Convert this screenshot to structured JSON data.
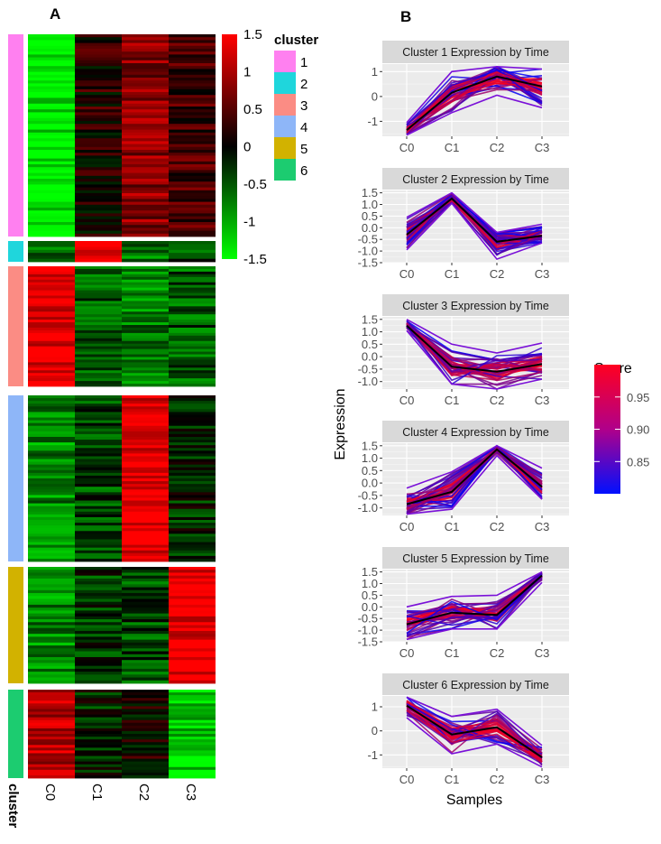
{
  "figure": {
    "panel_a_label": "A",
    "panel_b_label": "B"
  },
  "chart_data": [
    {
      "type": "heatmap",
      "title": "",
      "columns": [
        "C0",
        "C1",
        "C2",
        "C3"
      ],
      "row_annotation_label": "cluster",
      "color_scale": {
        "min": -1.5,
        "max": 1.5,
        "low_color": "#00ff00",
        "mid_color": "#000000",
        "high_color": "#ff0000",
        "ticks": [
          "1.5",
          "1",
          "0.5",
          "0",
          "-0.5",
          "-1",
          "-1.5"
        ],
        "tick_values": [
          1.5,
          1,
          0.5,
          0,
          -0.5,
          -1,
          -1.5
        ]
      },
      "legend": {
        "title": "cluster",
        "entries": [
          {
            "label": "1",
            "color": "#ff80f0"
          },
          {
            "label": "2",
            "color": "#1fd6dc"
          },
          {
            "label": "3",
            "color": "#fb8c84"
          },
          {
            "label": "4",
            "color": "#8eb6f8"
          },
          {
            "label": "5",
            "color": "#d2b200"
          },
          {
            "label": "6",
            "color": "#1ccc70"
          }
        ]
      },
      "clusters": [
        {
          "cluster": "1",
          "rows": 70,
          "mean": [
            -1.4,
            0.2,
            0.8,
            0.4
          ]
        },
        {
          "cluster": "2",
          "rows": 7,
          "mean": [
            -0.6,
            1.5,
            -0.7,
            -0.4
          ]
        },
        {
          "cluster": "3",
          "rows": 45,
          "mean": [
            1.4,
            -0.5,
            -0.7,
            -0.5
          ]
        },
        {
          "cluster": "4",
          "rows": 60,
          "mean": [
            -0.8,
            -0.4,
            1.4,
            -0.2
          ]
        },
        {
          "cluster": "5",
          "rows": 40,
          "mean": [
            -0.8,
            -0.3,
            -0.4,
            1.4
          ]
        },
        {
          "cluster": "6",
          "rows": 32,
          "mean": [
            1.1,
            -0.2,
            0.1,
            -1.2
          ]
        }
      ]
    },
    {
      "type": "line",
      "title": "Cluster Expression by Time",
      "xlabel": "Samples",
      "ylabel": "Expression",
      "x": [
        "C0",
        "C1",
        "C2",
        "C3"
      ],
      "grid": true,
      "score_legend": {
        "title": "Score",
        "ticks": [
          "0.95",
          "0.90",
          "0.85"
        ],
        "tick_values": [
          0.95,
          0.9,
          0.85
        ],
        "range": [
          0.8,
          1.0
        ],
        "low_color": "#0000ff",
        "high_color": "#ff0000"
      },
      "facets": [
        {
          "title": "Cluster 1 Expression by Time",
          "ylim": [
            -1.6,
            1.3
          ],
          "yticks": [
            "1",
            "0",
            "-1"
          ],
          "ytick_values": [
            1,
            0,
            -1
          ],
          "mean": [
            -1.35,
            0.15,
            0.8,
            0.4
          ],
          "upper": [
            -1.05,
            1.0,
            1.2,
            1.1
          ],
          "lower": [
            -1.55,
            -0.65,
            0.05,
            -0.45
          ]
        },
        {
          "title": "Cluster 2 Expression by Time",
          "ylim": [
            -1.5,
            1.6
          ],
          "yticks": [
            "1.5",
            "1.0",
            "0.5",
            "0.0",
            "-0.5",
            "-1.0",
            "-1.5"
          ],
          "ytick_values": [
            1.5,
            1.0,
            0.5,
            0.0,
            -0.5,
            -1.0,
            -1.5
          ],
          "mean": [
            -0.3,
            1.25,
            -0.6,
            -0.35
          ],
          "upper": [
            0.45,
            1.5,
            -0.2,
            0.15
          ],
          "lower": [
            -0.95,
            1.05,
            -1.35,
            -0.65
          ]
        },
        {
          "title": "Cluster 3 Expression by Time",
          "ylim": [
            -1.3,
            1.6
          ],
          "yticks": [
            "1.5",
            "1.0",
            "0.5",
            "0.0",
            "-0.5",
            "-1.0"
          ],
          "ytick_values": [
            1.5,
            1.0,
            0.5,
            0.0,
            -0.5,
            -1.0
          ],
          "mean": [
            1.25,
            -0.4,
            -0.6,
            -0.3
          ],
          "upper": [
            1.5,
            0.5,
            0.15,
            0.55
          ],
          "lower": [
            1.05,
            -1.1,
            -1.3,
            -0.9
          ]
        },
        {
          "title": "Cluster 4 Expression by Time",
          "ylim": [
            -1.3,
            1.6
          ],
          "yticks": [
            "1.5",
            "1.0",
            "0.5",
            "0.0",
            "-0.5",
            "-1.0"
          ],
          "ytick_values": [
            1.5,
            1.0,
            0.5,
            0.0,
            -0.5,
            -1.0
          ],
          "mean": [
            -0.85,
            -0.35,
            1.35,
            -0.15
          ],
          "upper": [
            -0.2,
            0.45,
            1.5,
            0.6
          ],
          "lower": [
            -1.25,
            -1.05,
            1.1,
            -0.65
          ]
        },
        {
          "title": "Cluster 5 Expression by Time",
          "ylim": [
            -1.5,
            1.6
          ],
          "yticks": [
            "1.5",
            "1.0",
            "0.5",
            "0.0",
            "-0.5",
            "-1.0",
            "-1.5"
          ],
          "ytick_values": [
            1.5,
            1.0,
            0.5,
            0.0,
            -0.5,
            -1.0,
            -1.5
          ],
          "mean": [
            -0.75,
            -0.25,
            -0.35,
            1.35
          ],
          "upper": [
            0.0,
            0.45,
            0.5,
            1.5
          ],
          "lower": [
            -1.4,
            -0.95,
            -0.95,
            1.05
          ]
        },
        {
          "title": "Cluster 6 Expression by Time",
          "ylim": [
            -1.55,
            1.45
          ],
          "yticks": [
            "1",
            "0",
            "-1"
          ],
          "ytick_values": [
            1,
            0,
            -1
          ],
          "mean": [
            1.05,
            -0.15,
            0.15,
            -1.1
          ],
          "upper": [
            1.4,
            0.6,
            0.9,
            -0.6
          ],
          "lower": [
            0.55,
            -0.95,
            -0.55,
            -1.5
          ]
        }
      ]
    }
  ]
}
